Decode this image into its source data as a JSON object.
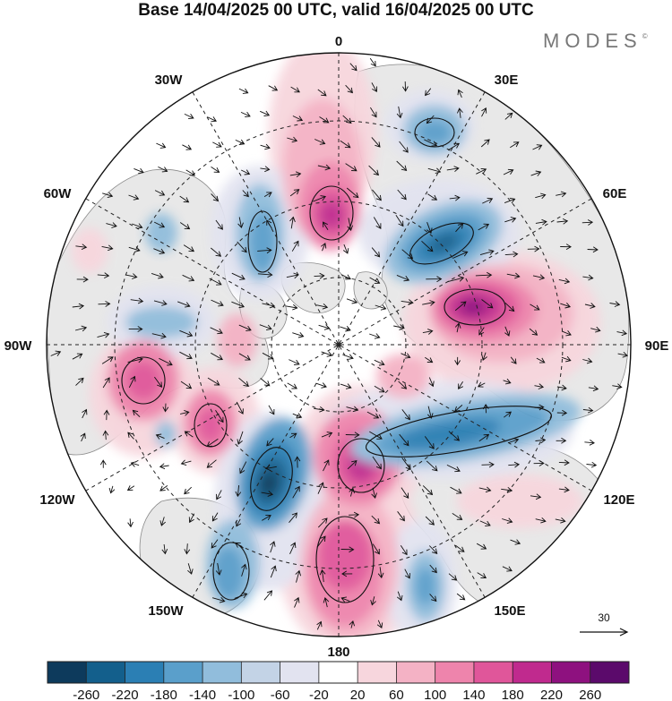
{
  "title": "Base 14/04/2025 00 UTC, valid 16/04/2025 00 UTC",
  "logo": "MODES",
  "logo_mark": "©",
  "meridian_labels": {
    "lon_0": "0",
    "lon_30e": "30E",
    "lon_60e": "60E",
    "lon_90e": "90E",
    "lon_120e": "120E",
    "lon_150e": "150E",
    "lon_180": "180",
    "lon_150w": "150W",
    "lon_120w": "120W",
    "lon_90w": "90W",
    "lon_60w": "60W",
    "lon_30w": "30W"
  },
  "reference_vector": {
    "label": "30"
  },
  "colorbar": {
    "ticks": [
      "-260",
      "-220",
      "-180",
      "-140",
      "-100",
      "-60",
      "-20",
      "20",
      "60",
      "100",
      "140",
      "180",
      "220",
      "260"
    ],
    "colors": [
      "#0d3a5c",
      "#135f8c",
      "#2b7fb4",
      "#5a9fcb",
      "#91bddc",
      "#c3d3e6",
      "#e2e3f0",
      "#ffffff",
      "#f7d6dd",
      "#f4b2c5",
      "#ee84ac",
      "#e0569a",
      "#c02a8e",
      "#8e117f",
      "#5b0a6b"
    ]
  },
  "map": {
    "projection": "north-polar-stereographic",
    "land_color": "#e8e8e8",
    "coast_color": "#8a8a8a"
  }
}
